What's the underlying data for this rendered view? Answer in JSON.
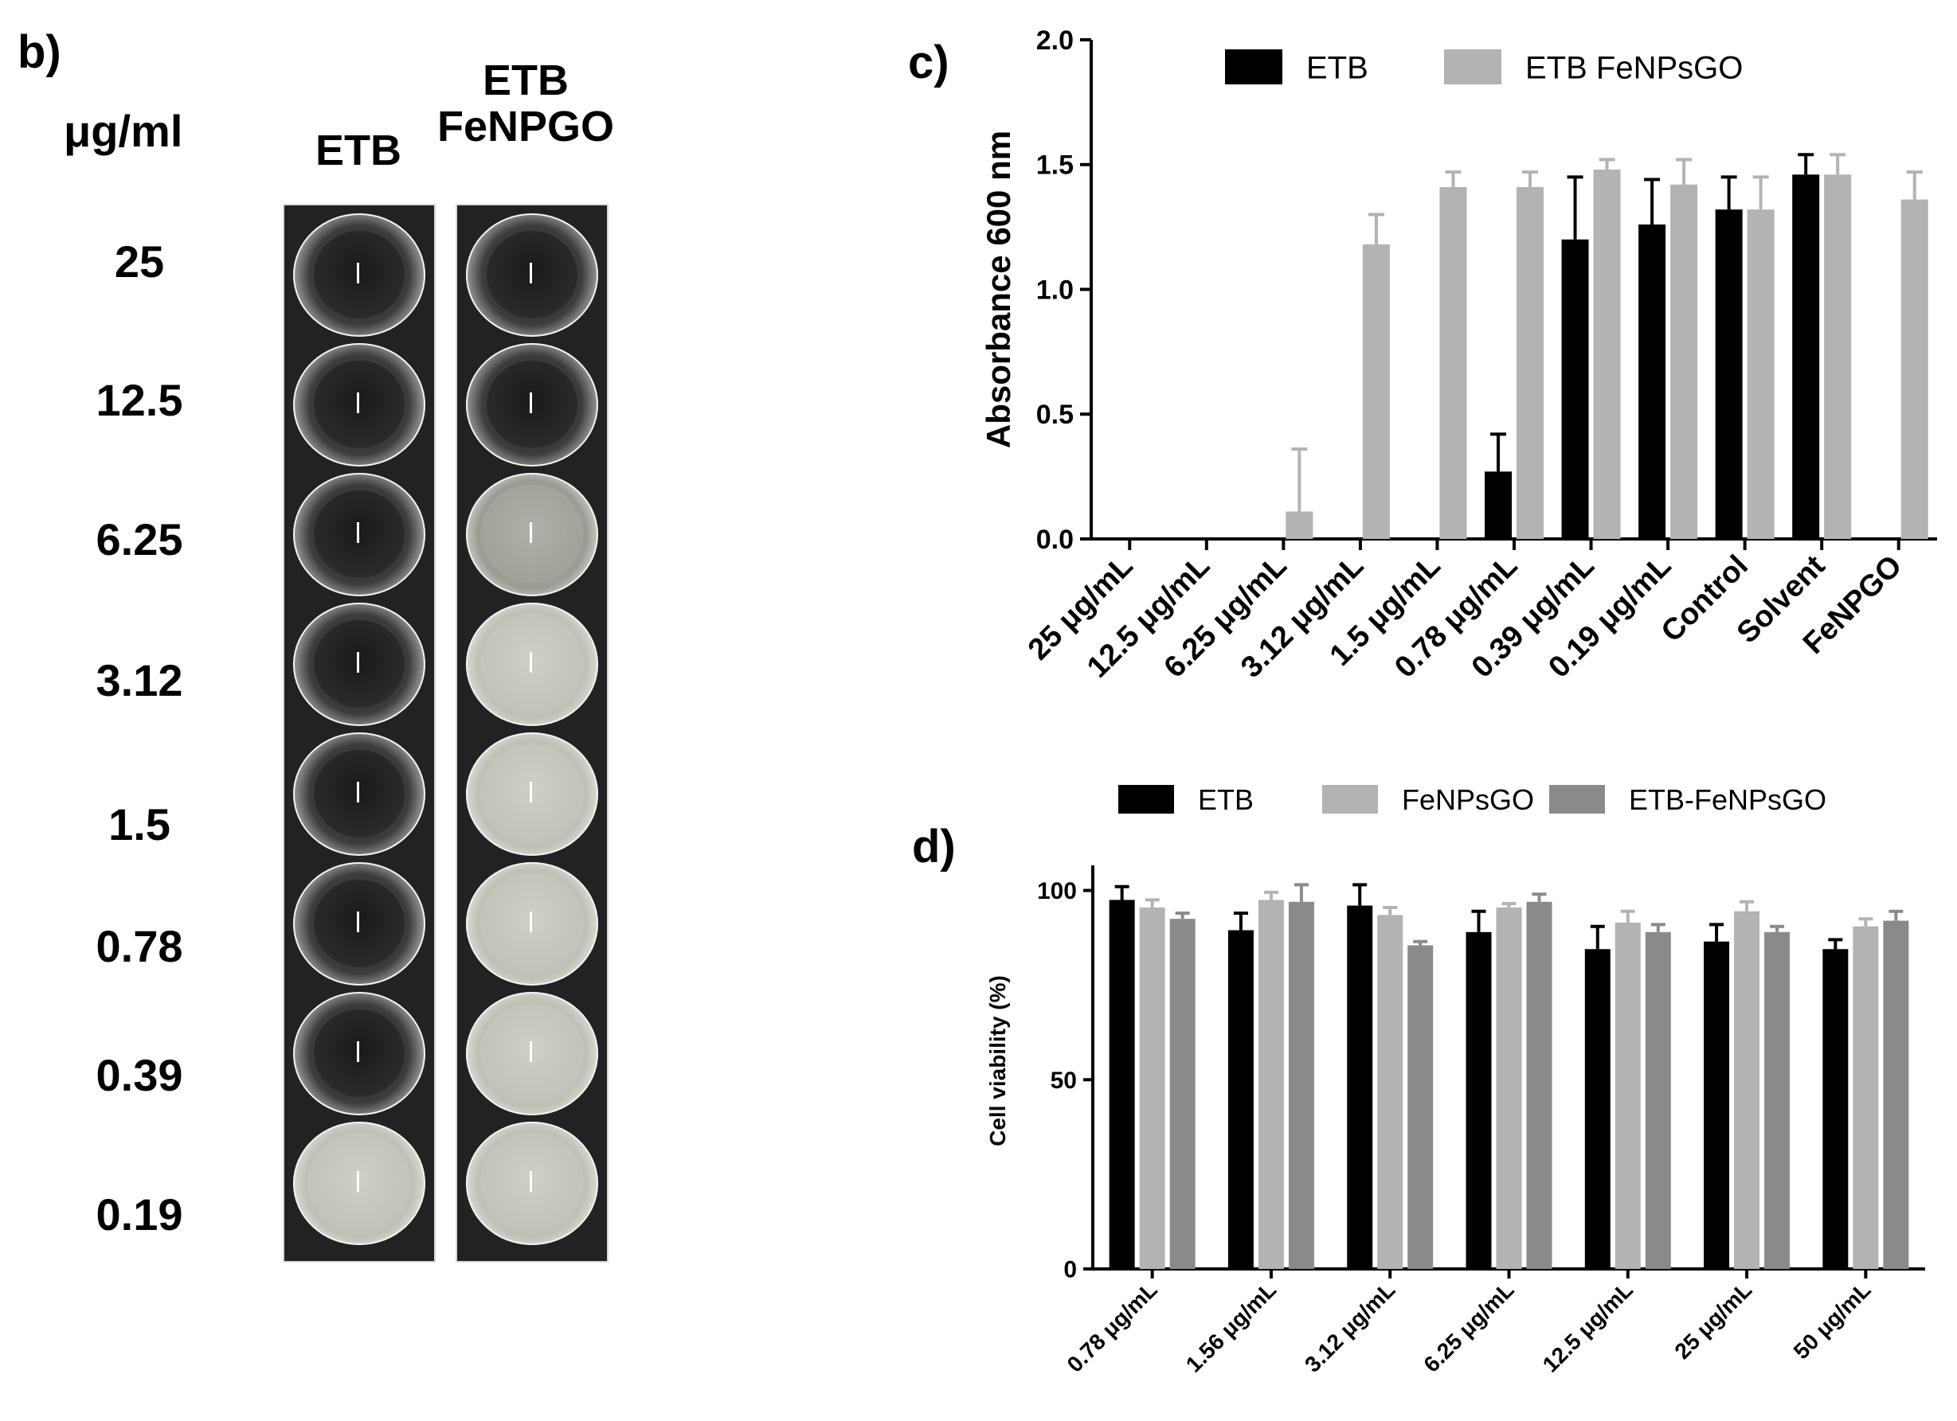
{
  "panel_b": {
    "label": "b)",
    "unit_label": "μg/ml",
    "col1_title": "ETB",
    "col2_title": "ETB\nFeNPGO",
    "concentrations": [
      "25",
      "12.5",
      "6.25",
      "3.12",
      "1.5",
      "0.78",
      "0.39",
      "0.19"
    ],
    "wells_etb": [
      "clear",
      "clear",
      "clear",
      "clear",
      "clear",
      "clear",
      "clear",
      "turbid"
    ],
    "wells_etb_fenpgo": [
      "clear",
      "clear",
      "faint",
      "turbid",
      "turbid",
      "turbid",
      "turbid",
      "turbid"
    ]
  },
  "chart_data": [
    {
      "panel_label": "c)",
      "type": "bar",
      "ylabel": "Absorbance 600 nm",
      "xlabel": "",
      "ylim": [
        0,
        2.0
      ],
      "yticks": [
        "0.0",
        "0.5",
        "1.0",
        "1.5",
        "2.0"
      ],
      "categories": [
        "25 μg/mL",
        "12.5 μg/mL",
        "6.25 μg/mL",
        "3.12 μg/mL",
        "1.5 μg/mL",
        "0.78 μg/mL",
        "0.39 μg/mL",
        "0.19 μg/mL",
        "Control",
        "Solvent",
        "FeNPGO"
      ],
      "series": [
        {
          "name": "ETB",
          "color": "#000000",
          "values": [
            0,
            0,
            0,
            0,
            0,
            0.27,
            1.2,
            1.26,
            1.32,
            1.46,
            null
          ],
          "errors": [
            0,
            0,
            0,
            0,
            0,
            0.15,
            0.25,
            0.18,
            0.13,
            0.08,
            null
          ]
        },
        {
          "name": "ETB FeNPsGO",
          "color": "#b3b3b3",
          "values": [
            0,
            0,
            0.11,
            1.18,
            1.41,
            1.41,
            1.48,
            1.42,
            1.32,
            1.46,
            1.36
          ],
          "errors": [
            0,
            0,
            0.25,
            0.12,
            0.06,
            0.06,
            0.04,
            0.1,
            0.13,
            0.08,
            0.11
          ]
        }
      ],
      "grid": false,
      "legend": "top"
    },
    {
      "panel_label": "d)",
      "type": "bar",
      "ylabel": "Cell viability (%)",
      "xlabel": "",
      "ylim": [
        0,
        110
      ],
      "yticks": [
        "0",
        "50",
        "100"
      ],
      "categories": [
        "0.78 μg/mL",
        "1.56 μg/mL",
        "3.12 μg/mL",
        "6.25 μg/mL",
        "12.5 μg/mL",
        "25 μg/mL",
        "50 μg/mL"
      ],
      "series": [
        {
          "name": "ETB",
          "color": "#000000",
          "values": [
            97.5,
            89.5,
            96,
            89,
            84.5,
            86.5,
            84.5
          ],
          "errors": [
            3.5,
            4.5,
            5.5,
            5.5,
            6,
            4.5,
            2.5
          ]
        },
        {
          "name": "FeNPsGO",
          "color": "#b3b3b3",
          "values": [
            95.5,
            97.5,
            93.5,
            95.5,
            91.5,
            94.5,
            90.5
          ],
          "errors": [
            2,
            2,
            2,
            1,
            3,
            2.5,
            2
          ]
        },
        {
          "name": "ETB-FeNPsGO",
          "color": "#8a8a8a",
          "values": [
            92.5,
            97,
            85.5,
            97,
            89,
            89,
            92
          ],
          "errors": [
            1.5,
            4.5,
            1,
            2,
            2,
            1.5,
            2.5
          ]
        }
      ],
      "grid": false,
      "legend": "top"
    }
  ]
}
